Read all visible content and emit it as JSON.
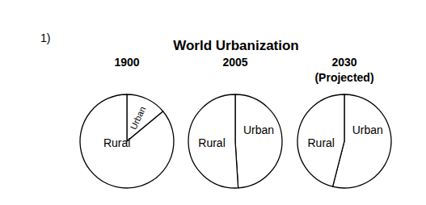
{
  "label": "1)",
  "title": "World Urbanization",
  "chart_data": [
    {
      "type": "pie",
      "title": "1900",
      "categories": [
        "Urban",
        "Rural"
      ],
      "values": [
        14,
        86
      ],
      "color": "#ffffff"
    },
    {
      "type": "pie",
      "title": "2005",
      "categories": [
        "Urban",
        "Rural"
      ],
      "values": [
        49,
        51
      ],
      "color": "#ffffff"
    },
    {
      "type": "pie",
      "title": "2030",
      "subtitle": "(Projected)",
      "categories": [
        "Urban",
        "Rural"
      ],
      "values": [
        54,
        46
      ],
      "color": "#ffffff"
    }
  ]
}
